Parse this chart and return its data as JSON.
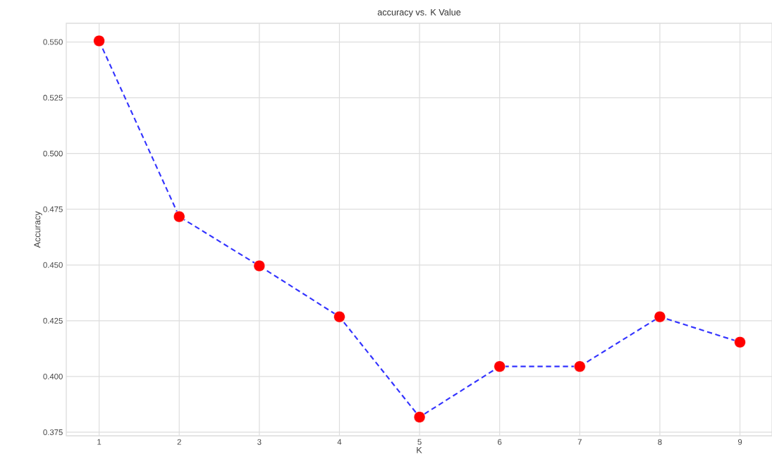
{
  "chart_data": {
    "type": "line",
    "title": "accuracy vs. K Value",
    "xlabel": "K",
    "ylabel": "Accuracy",
    "x": [
      1,
      2,
      3,
      4,
      5,
      6,
      7,
      8,
      9
    ],
    "series": [
      {
        "color": "#3333ff",
        "colors": [
          "#ff0000",
          "#ff0000",
          "#ff0000",
          "#ff0000",
          "#ff0000",
          "#ff0000",
          "#ff0000",
          "#ff0000",
          "#ff0000"
        ],
        "values": [
          0.5505,
          0.4717,
          0.4496,
          0.4268,
          0.3818,
          0.4045,
          0.4045,
          0.4268,
          0.4154
        ]
      }
    ],
    "xlim": [
      0.59,
      9.4
    ],
    "ylim": [
      0.3734,
      0.5584
    ],
    "xticks": [
      1,
      2,
      3,
      4,
      5,
      6,
      7,
      8,
      9
    ],
    "yticks": [
      0.375,
      {
        "value": 0.4,
        "label": "0.400"
      },
      0.425,
      {
        "value": 0.45,
        "label": "0.450"
      },
      0.475,
      {
        "value": 0.5,
        "label": "0.500"
      },
      0.525,
      {
        "value": 0.55,
        "label": "0.550"
      }
    ],
    "grid": true,
    "marker": "circle",
    "line_style": "dashed"
  }
}
